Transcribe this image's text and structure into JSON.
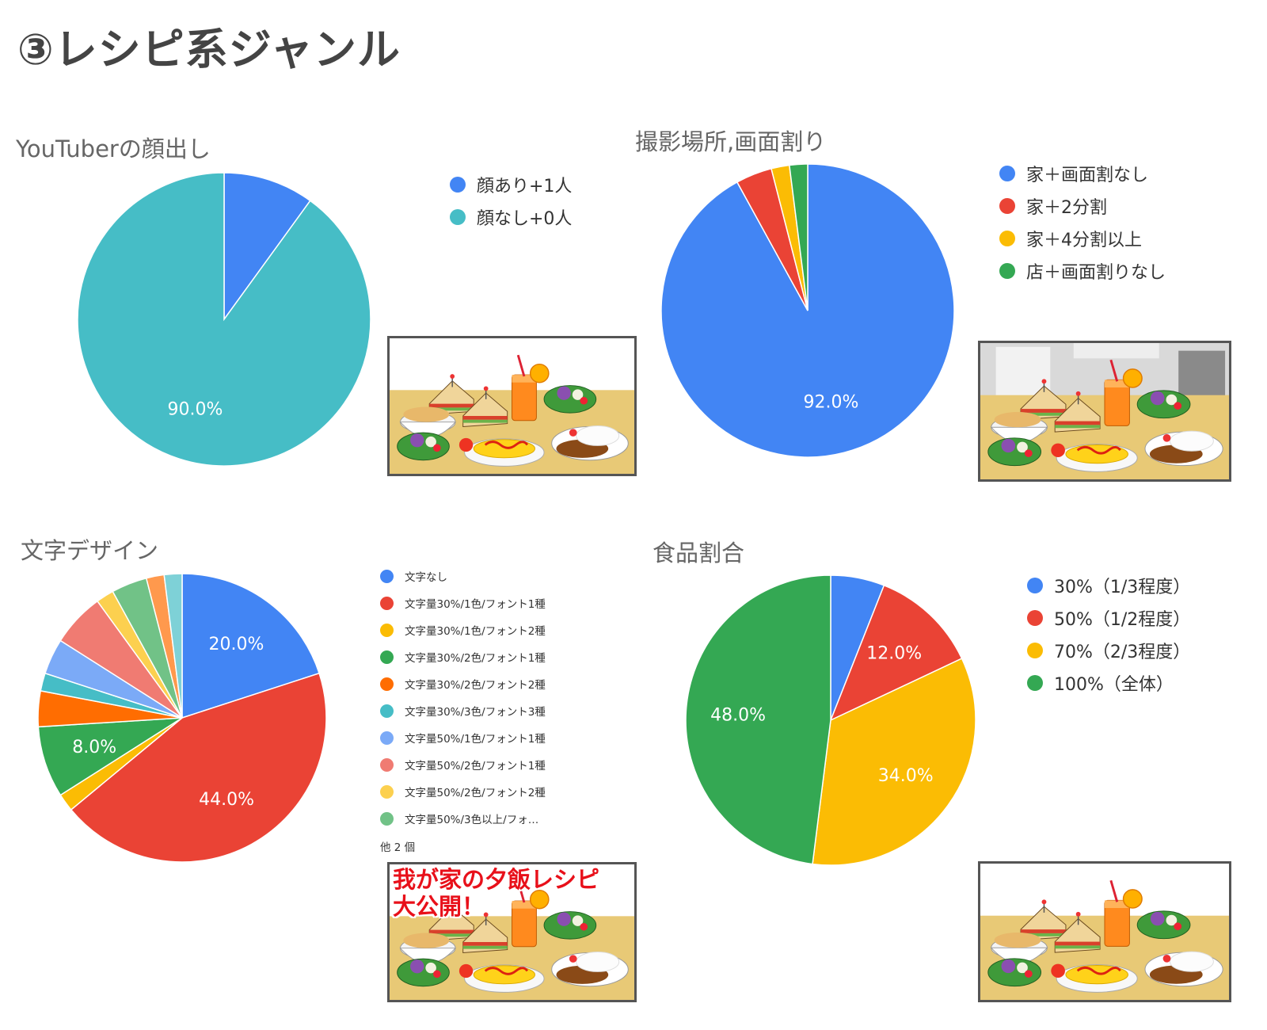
{
  "page": {
    "title": "③レシピ系ジャンル"
  },
  "chart_data": [
    {
      "type": "pie",
      "title": "YouTuberの顔出し",
      "legend_position": "right",
      "start": 0,
      "labels": [
        "顔あり+1人",
        "顔なし+0人"
      ],
      "values": [
        10,
        90
      ],
      "colors": [
        "#4285f4",
        "#46bdc6"
      ],
      "data_labels": [
        "",
        "90.0%"
      ]
    },
    {
      "type": "pie",
      "title": "撮影場所,画面割り",
      "legend_position": "right",
      "start": 0,
      "labels": [
        "家＋画面割なし",
        "家＋2分割",
        "家＋4分割以上",
        "店＋画面割りなし"
      ],
      "values": [
        92,
        4,
        2,
        2
      ],
      "colors": [
        "#4285f4",
        "#ea4335",
        "#fbbc04",
        "#34a853"
      ],
      "data_labels": [
        "92.0%",
        "",
        "",
        ""
      ]
    },
    {
      "type": "pie",
      "title": "文字デザイン",
      "legend_position": "right",
      "start": 0,
      "labels": [
        "文字なし",
        "文字量30%/1色/フォント1種",
        "文字量30%/1色/フォント2種",
        "文字量30%/2色/フォント1種",
        "文字量30%/2色/フォント2種",
        "文字量30%/3色/フォント3種",
        "文字量50%/1色/フォント1種",
        "文字量50%/2色/フォント1種",
        "文字量50%/2色/フォント2種",
        "文字量50%/3色以上/フォ…",
        "",
        ""
      ],
      "values": [
        20,
        44,
        2,
        8,
        4,
        2,
        4,
        6,
        2,
        4,
        2,
        2
      ],
      "colors": [
        "#4285f4",
        "#ea4335",
        "#fbbc04",
        "#34a853",
        "#ff6d01",
        "#46bdc6",
        "#7baaf7",
        "#f07b72",
        "#fcd04f",
        "#71c287",
        "#ff994d",
        "#7ed1d7"
      ],
      "data_labels": [
        "20.0%",
        "44.0%",
        "",
        "8.0%",
        "",
        "",
        "",
        "",
        "",
        "",
        "",
        ""
      ],
      "legend_more": "他 2 個"
    },
    {
      "type": "pie",
      "title": "食品割合",
      "legend_position": "right",
      "start": 0,
      "labels": [
        "30%（1/3程度）",
        "50%（1/2程度）",
        "70%（2/3程度）",
        "100%（全体）"
      ],
      "values": [
        6,
        12,
        34,
        48
      ],
      "colors": [
        "#4285f4",
        "#ea4335",
        "#fbbc04",
        "#34a853"
      ],
      "data_labels": [
        "",
        "12.0%",
        "34.0%",
        "48.0%"
      ]
    }
  ],
  "thumbnails": [
    {
      "variant": "plain"
    },
    {
      "variant": "room"
    },
    {
      "variant": "text",
      "overlay_lines": [
        "我が家の夕飯レシピ",
        "大公開！"
      ]
    },
    {
      "variant": "plain"
    }
  ]
}
